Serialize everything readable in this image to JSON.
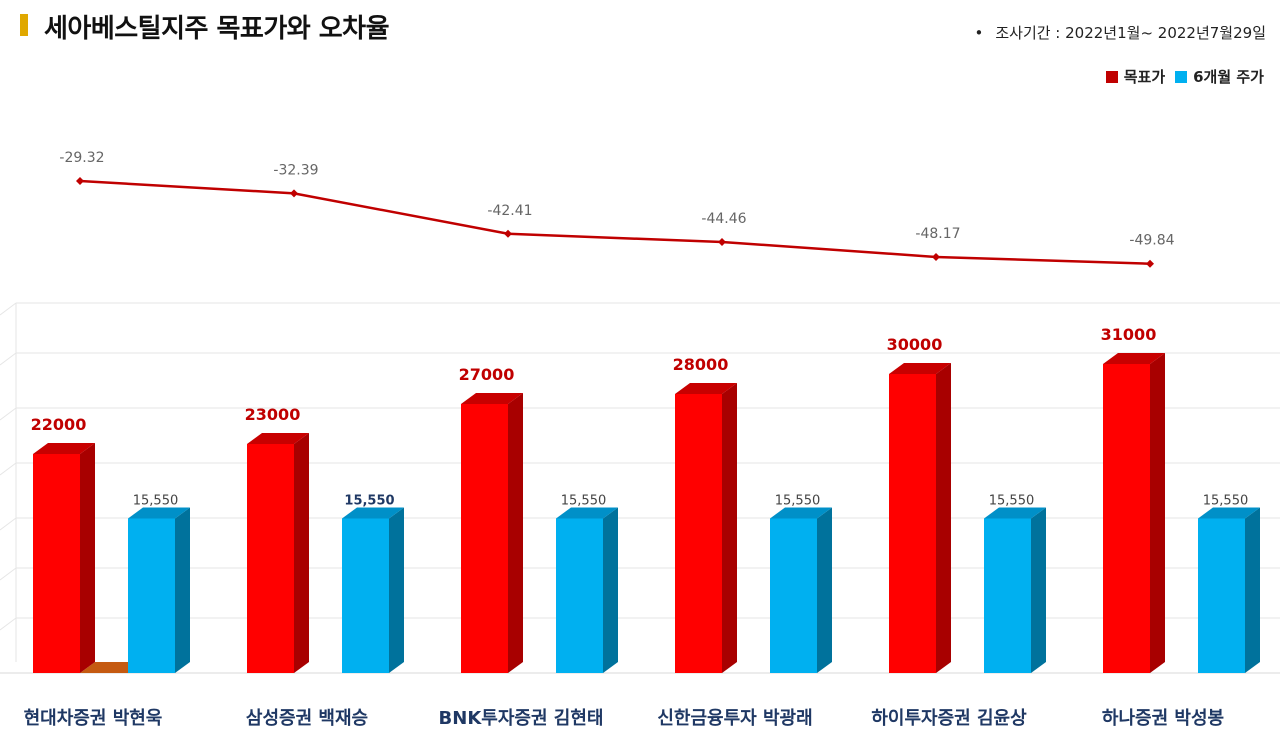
{
  "title": "세아베스틸지주 목표가와 오차율",
  "period": "조사기간 : 2022년1월~ 2022년7월29일",
  "colors": {
    "target": "#ff0000",
    "target_dark": "#a80000",
    "target_top": "#c80000",
    "price": "#00b0f0",
    "price_dark": "#00729c",
    "price_top": "#0090c8",
    "line": "#c00000",
    "accent": "#e0a800"
  },
  "chart_data": {
    "type": "bar",
    "categories": [
      "현대차증권 박현욱",
      "삼성증권 백재승",
      "BNK투자증권 김현태",
      "신한금융투자 박광래",
      "하이투자증권 김윤상",
      "하나증권 박성봉"
    ],
    "series": [
      {
        "name": "목표가",
        "values": [
          22000,
          23000,
          27000,
          28000,
          30000,
          31000
        ],
        "labels": [
          "22000",
          "23000",
          "27000",
          "28000",
          "30000",
          "31000"
        ]
      },
      {
        "name": "6개월 주가",
        "values": [
          15550,
          15550,
          15550,
          15550,
          15550,
          15550
        ],
        "labels": [
          "15,550",
          "15,550",
          "15,550",
          "15,550",
          "15,550",
          "15,550"
        ]
      }
    ],
    "error_line": {
      "type": "line",
      "values": [
        -29.32,
        -32.39,
        -42.41,
        -44.46,
        -48.17,
        -49.84
      ],
      "labels": [
        "-29.32",
        "-32.39",
        "-42.41",
        "-44.46",
        "-48.17",
        "-49.84"
      ]
    },
    "legend_position": "top-right",
    "grid": true
  }
}
